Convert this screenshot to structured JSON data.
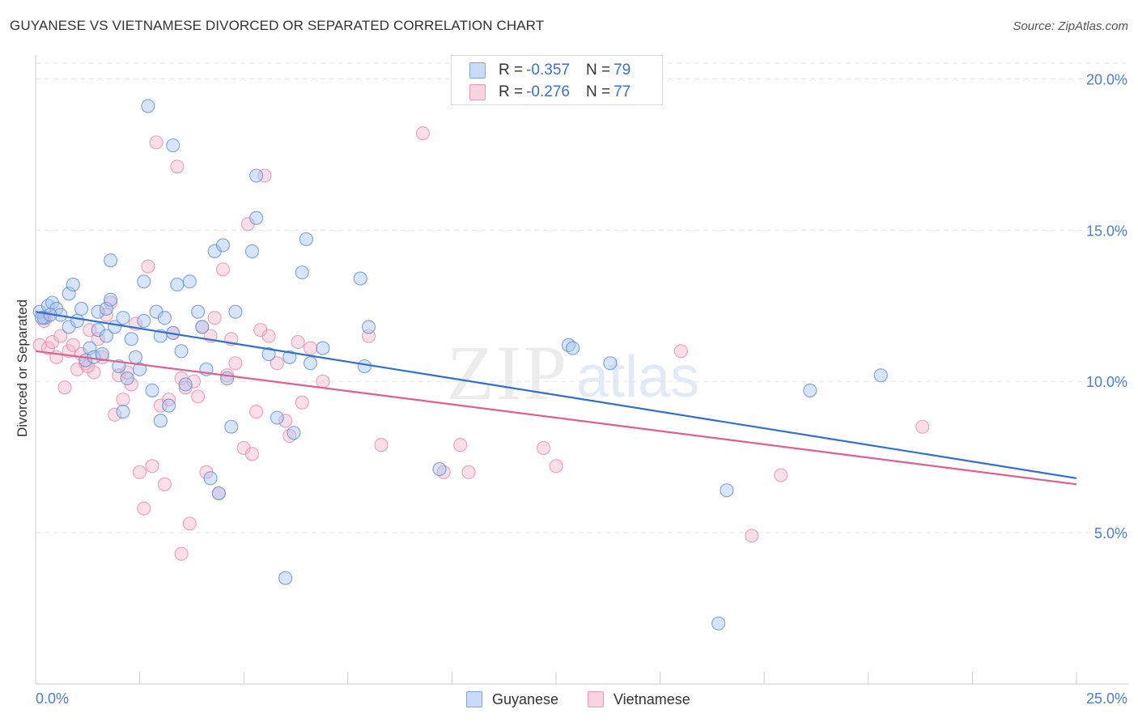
{
  "title": "GUYANESE VS VIETNAMESE DIVORCED OR SEPARATED CORRELATION CHART",
  "source": "Source: ZipAtlas.com",
  "watermark": {
    "zip": "ZIP",
    "atlas": "atlas"
  },
  "legend_top": [
    {
      "swatch_color": "#a8c4ee",
      "r_label": "R =",
      "r_value": "-0.357",
      "n_label": "N =",
      "n_value": "79"
    },
    {
      "swatch_color": "#f5b8cb",
      "r_label": "R =",
      "r_value": "-0.276",
      "n_label": "N =",
      "n_value": "77"
    }
  ],
  "legend_bottom": [
    {
      "label": "Guyanese",
      "color": "#a8c4ee"
    },
    {
      "label": "Vietnamese",
      "color": "#f5b8cb"
    }
  ],
  "chart_data": {
    "type": "scatter",
    "title": "GUYANESE VS VIETNAMESE DIVORCED OR SEPARATED CORRELATION CHART",
    "xlabel": "",
    "ylabel": "Divorced or Separated",
    "xlim": [
      0,
      25
    ],
    "ylim": [
      0,
      21
    ],
    "x_tick_labels": [
      "0.0%",
      "25.0%"
    ],
    "y_ticks": [
      5,
      10,
      15,
      20
    ],
    "y_tick_labels": [
      "5.0%",
      "10.0%",
      "15.0%",
      "20.0%"
    ],
    "grid": true,
    "series": [
      {
        "name": "Guyanese",
        "color": "#5b8fd8",
        "fill": "#a8c4ee",
        "line_color": "#2f6fd0",
        "trend": {
          "x0": 0,
          "y0": 12.3,
          "x1": 25,
          "y1": 6.8
        },
        "points": [
          [
            0.1,
            12.3
          ],
          [
            0.2,
            12.1
          ],
          [
            0.3,
            12.5
          ],
          [
            0.4,
            12.6
          ],
          [
            0.5,
            12.4
          ],
          [
            0.6,
            12.2
          ],
          [
            0.8,
            11.8
          ],
          [
            0.8,
            12.9
          ],
          [
            0.9,
            13.2
          ],
          [
            1.0,
            12.0
          ],
          [
            1.1,
            12.4
          ],
          [
            1.2,
            10.7
          ],
          [
            1.3,
            11.1
          ],
          [
            1.4,
            10.8
          ],
          [
            1.5,
            12.3
          ],
          [
            1.5,
            11.7
          ],
          [
            1.6,
            10.9
          ],
          [
            1.7,
            12.4
          ],
          [
            1.7,
            11.5
          ],
          [
            1.8,
            12.7
          ],
          [
            1.8,
            14.0
          ],
          [
            1.9,
            11.8
          ],
          [
            2.0,
            10.5
          ],
          [
            2.1,
            9.0
          ],
          [
            2.1,
            12.1
          ],
          [
            2.2,
            10.1
          ],
          [
            2.3,
            11.4
          ],
          [
            2.4,
            10.8
          ],
          [
            2.5,
            10.4
          ],
          [
            2.6,
            12.0
          ],
          [
            2.6,
            13.3
          ],
          [
            2.7,
            19.1
          ],
          [
            2.8,
            9.7
          ],
          [
            2.9,
            12.3
          ],
          [
            3.0,
            11.5
          ],
          [
            3.0,
            8.7
          ],
          [
            3.1,
            12.1
          ],
          [
            3.2,
            9.2
          ],
          [
            3.3,
            11.6
          ],
          [
            3.3,
            17.8
          ],
          [
            3.4,
            13.2
          ],
          [
            3.5,
            11.0
          ],
          [
            3.6,
            9.9
          ],
          [
            3.7,
            13.3
          ],
          [
            3.9,
            12.3
          ],
          [
            4.0,
            11.8
          ],
          [
            4.1,
            10.4
          ],
          [
            4.2,
            6.8
          ],
          [
            4.3,
            14.3
          ],
          [
            4.4,
            6.3
          ],
          [
            4.5,
            14.5
          ],
          [
            4.6,
            10.1
          ],
          [
            4.7,
            8.5
          ],
          [
            4.8,
            12.3
          ],
          [
            5.2,
            14.3
          ],
          [
            5.3,
            15.4
          ],
          [
            5.3,
            16.8
          ],
          [
            5.6,
            10.9
          ],
          [
            5.8,
            8.8
          ],
          [
            6.0,
            3.5
          ],
          [
            6.1,
            10.8
          ],
          [
            6.2,
            8.3
          ],
          [
            6.4,
            13.6
          ],
          [
            6.5,
            14.7
          ],
          [
            6.6,
            10.6
          ],
          [
            6.9,
            11.1
          ],
          [
            7.8,
            13.4
          ],
          [
            7.9,
            10.5
          ],
          [
            8.0,
            11.8
          ],
          [
            9.7,
            7.1
          ],
          [
            12.8,
            11.2
          ],
          [
            12.9,
            11.1
          ],
          [
            13.8,
            10.6
          ],
          [
            16.4,
            2.0
          ],
          [
            16.6,
            6.4
          ],
          [
            18.6,
            9.7
          ],
          [
            20.3,
            10.2
          ],
          [
            0.15,
            12.1
          ],
          [
            0.35,
            12.2
          ]
        ]
      },
      {
        "name": "Vietnamese",
        "color": "#e889a6",
        "fill": "#f5b8cb",
        "line_color": "#e0608c",
        "trend": {
          "x0": 0,
          "y0": 11.0,
          "x1": 25,
          "y1": 6.6
        },
        "points": [
          [
            0.1,
            11.2
          ],
          [
            0.2,
            12.0
          ],
          [
            0.3,
            11.1
          ],
          [
            0.4,
            11.3
          ],
          [
            0.5,
            10.8
          ],
          [
            0.6,
            11.5
          ],
          [
            0.7,
            9.8
          ],
          [
            0.8,
            11.0
          ],
          [
            0.9,
            11.2
          ],
          [
            1.0,
            10.4
          ],
          [
            1.1,
            10.9
          ],
          [
            1.2,
            10.6
          ],
          [
            1.3,
            11.7
          ],
          [
            1.4,
            10.3
          ],
          [
            1.5,
            11.4
          ],
          [
            1.6,
            10.8
          ],
          [
            1.7,
            12.2
          ],
          [
            1.8,
            12.6
          ],
          [
            1.9,
            8.9
          ],
          [
            2.0,
            10.2
          ],
          [
            2.1,
            9.4
          ],
          [
            2.2,
            10.3
          ],
          [
            2.3,
            9.9
          ],
          [
            2.4,
            11.9
          ],
          [
            2.5,
            7.0
          ],
          [
            2.6,
            5.8
          ],
          [
            2.7,
            13.8
          ],
          [
            2.8,
            7.2
          ],
          [
            2.9,
            17.9
          ],
          [
            3.0,
            9.2
          ],
          [
            3.1,
            6.6
          ],
          [
            3.2,
            9.4
          ],
          [
            3.3,
            11.6
          ],
          [
            3.4,
            17.1
          ],
          [
            3.5,
            10.1
          ],
          [
            3.5,
            4.3
          ],
          [
            3.6,
            9.8
          ],
          [
            3.7,
            5.3
          ],
          [
            3.8,
            10.0
          ],
          [
            3.9,
            9.5
          ],
          [
            4.0,
            11.8
          ],
          [
            4.1,
            7.0
          ],
          [
            4.2,
            11.5
          ],
          [
            4.3,
            12.1
          ],
          [
            4.4,
            6.3
          ],
          [
            4.5,
            13.7
          ],
          [
            4.6,
            10.2
          ],
          [
            4.7,
            11.4
          ],
          [
            4.8,
            10.6
          ],
          [
            5.0,
            7.8
          ],
          [
            5.1,
            15.2
          ],
          [
            5.2,
            7.6
          ],
          [
            5.3,
            9.0
          ],
          [
            5.4,
            11.7
          ],
          [
            5.5,
            16.8
          ],
          [
            5.6,
            11.5
          ],
          [
            5.8,
            10.6
          ],
          [
            6.0,
            8.7
          ],
          [
            6.1,
            8.2
          ],
          [
            6.3,
            11.3
          ],
          [
            6.4,
            9.3
          ],
          [
            6.6,
            11.1
          ],
          [
            6.9,
            10.0
          ],
          [
            8.0,
            11.5
          ],
          [
            8.3,
            7.9
          ],
          [
            9.3,
            18.2
          ],
          [
            9.8,
            7.0
          ],
          [
            10.2,
            7.9
          ],
          [
            10.4,
            7.0
          ],
          [
            12.2,
            7.8
          ],
          [
            12.5,
            7.2
          ],
          [
            15.5,
            11.0
          ],
          [
            17.2,
            4.9
          ],
          [
            17.9,
            6.9
          ],
          [
            21.3,
            8.5
          ],
          [
            0.25,
            12.1
          ],
          [
            1.25,
            10.5
          ]
        ]
      }
    ]
  }
}
